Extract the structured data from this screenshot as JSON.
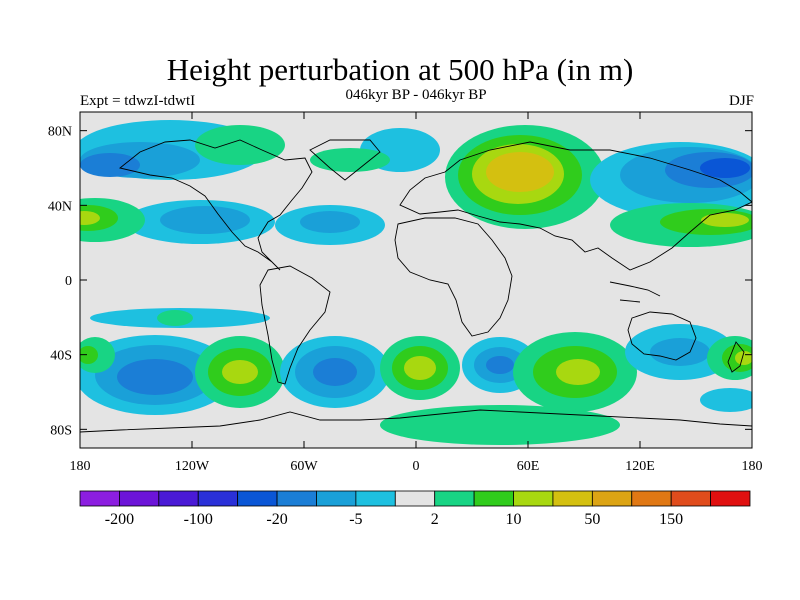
{
  "title": "Height perturbation at 500 hPa (in m)",
  "subtitle": "046kyr BP - 046kyr BP",
  "left_label": "Expt = tdwzI-tdwtI",
  "right_label": "DJF",
  "map": {
    "lat_ticks": [
      "80N",
      "40N",
      "0",
      "40S",
      "80S"
    ],
    "lon_ticks": [
      "180",
      "120W",
      "60W",
      "0",
      "60E",
      "120E",
      "180"
    ],
    "lat_tick_values": [
      80,
      40,
      0,
      -40,
      -80
    ],
    "lon_tick_values": [
      -180,
      -120,
      -60,
      0,
      60,
      120,
      180
    ],
    "lat_range": [
      -90,
      90
    ],
    "lon_range": [
      -180,
      180
    ]
  },
  "colorbar": {
    "colors": [
      "#8c1ee0",
      "#6c14d8",
      "#4a1ad6",
      "#2a30d8",
      "#0a56d6",
      "#1b7ed6",
      "#1aa0d8",
      "#1ec0e0",
      "#e4e4e4",
      "#18d484",
      "#30cc1c",
      "#a8d810",
      "#d4c010",
      "#dca414",
      "#e07814",
      "#e04c1c",
      "#e01010"
    ],
    "labels": [
      "-200",
      "-100",
      "-20",
      "-5",
      "2",
      "10",
      "50",
      "150"
    ]
  }
}
